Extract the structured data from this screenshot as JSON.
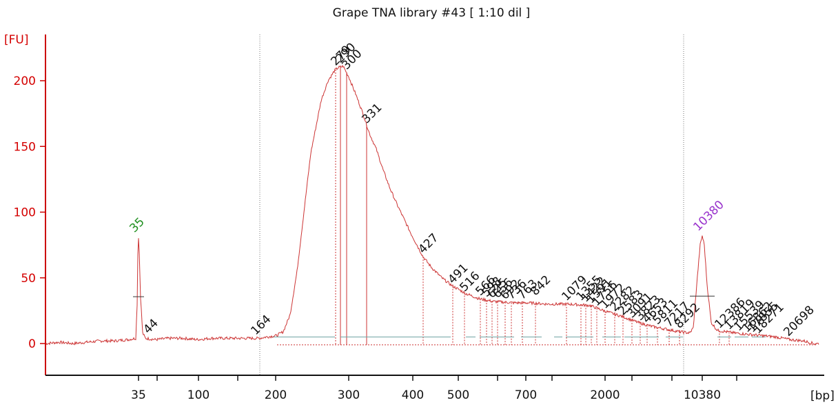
{
  "chart_data": {
    "type": "line",
    "title": "Grape TNA library #43  [ 1:10 dil ]",
    "ylabel": "[FU]",
    "xlabel": "[bp]",
    "ylim": [
      -22,
      230
    ],
    "y_ticks": [
      0,
      50,
      100,
      150,
      200
    ],
    "x_ticks": [
      "35",
      "",
      "100",
      "",
      "200",
      "300",
      "400",
      "500",
      "",
      "700",
      "",
      "2000",
      "",
      "",
      "10380",
      ""
    ],
    "series": [
      {
        "points": [
          [
            0,
            0
          ],
          [
            20,
            1
          ],
          [
            40,
            0
          ],
          [
            60,
            1
          ],
          [
            80,
            2
          ],
          [
            100,
            2
          ],
          [
            120,
            3
          ],
          [
            131,
            4
          ],
          [
            133,
            30
          ],
          [
            134,
            68
          ],
          [
            135,
            81
          ],
          [
            136,
            70
          ],
          [
            138,
            35
          ],
          [
            141,
            8
          ],
          [
            145,
            4
          ],
          [
            160,
            3
          ],
          [
            180,
            4
          ],
          [
            200,
            4
          ],
          [
            220,
            3
          ],
          [
            240,
            4
          ],
          [
            260,
            4
          ],
          [
            280,
            4
          ],
          [
            300,
            4
          ],
          [
            310,
            4
          ],
          [
            320,
            5
          ],
          [
            335,
            6
          ],
          [
            345,
            9
          ],
          [
            355,
            22
          ],
          [
            365,
            55
          ],
          [
            375,
            100
          ],
          [
            385,
            145
          ],
          [
            400,
            185
          ],
          [
            410,
            200
          ],
          [
            420,
            208
          ],
          [
            425,
            210
          ],
          [
            432,
            211
          ],
          [
            440,
            203
          ],
          [
            450,
            190
          ],
          [
            460,
            176
          ],
          [
            470,
            160
          ],
          [
            480,
            148
          ],
          [
            490,
            132
          ],
          [
            500,
            118
          ],
          [
            510,
            106
          ],
          [
            520,
            95
          ],
          [
            530,
            84
          ],
          [
            540,
            74
          ],
          [
            548,
            66
          ],
          [
            560,
            58
          ],
          [
            575,
            50
          ],
          [
            590,
            44
          ],
          [
            610,
            38
          ],
          [
            630,
            34
          ],
          [
            650,
            32
          ],
          [
            680,
            31
          ],
          [
            700,
            31
          ],
          [
            730,
            30
          ],
          [
            760,
            30
          ],
          [
            790,
            29
          ],
          [
            810,
            25
          ],
          [
            840,
            20
          ],
          [
            860,
            16
          ],
          [
            880,
            13
          ],
          [
            900,
            11
          ],
          [
            920,
            9
          ],
          [
            935,
            8
          ],
          [
            940,
            12
          ],
          [
            945,
            45
          ],
          [
            950,
            75
          ],
          [
            953,
            82
          ],
          [
            956,
            75
          ],
          [
            960,
            45
          ],
          [
            966,
            16
          ],
          [
            975,
            10
          ],
          [
            1000,
            8
          ],
          [
            1020,
            7
          ],
          [
            1040,
            6
          ],
          [
            1060,
            5
          ],
          [
            1080,
            3
          ],
          [
            1100,
            2
          ],
          [
            1115,
            0
          ],
          [
            1122,
            0
          ]
        ]
      }
    ],
    "ladder_markers": [
      {
        "label": "35",
        "x": 135,
        "y": 81,
        "color": "#1f8f1f"
      },
      {
        "label": "10380",
        "x": 953,
        "y": 82,
        "color": "#9933cc"
      }
    ],
    "peak_labels": [
      {
        "label": "44",
        "x": 149,
        "y": 5
      },
      {
        "label": "164",
        "x": 305,
        "y": 4
      },
      {
        "label": "279",
        "x": 421,
        "y": 209
      },
      {
        "label": "290",
        "x": 428,
        "y": 211
      },
      {
        "label": "300",
        "x": 437,
        "y": 206
      },
      {
        "label": "331",
        "x": 466,
        "y": 165
      },
      {
        "label": "427",
        "x": 548,
        "y": 66
      },
      {
        "label": "491",
        "x": 591,
        "y": 43
      },
      {
        "label": "516",
        "x": 608,
        "y": 37
      },
      {
        "label": "566",
        "x": 631,
        "y": 34
      },
      {
        "label": "598",
        "x": 640,
        "y": 33
      },
      {
        "label": "625",
        "x": 648,
        "y": 32
      },
      {
        "label": "656",
        "x": 656,
        "y": 32
      },
      {
        "label": "692",
        "x": 667,
        "y": 31
      },
      {
        "label": "736",
        "x": 676,
        "y": 31
      },
      {
        "label": "763",
        "x": 692,
        "y": 31
      },
      {
        "label": "842",
        "x": 711,
        "y": 34
      },
      {
        "label": "1079",
        "x": 756,
        "y": 30
      },
      {
        "label": "1355",
        "x": 777,
        "y": 30
      },
      {
        "label": "1422",
        "x": 784,
        "y": 29
      },
      {
        "label": "1591",
        "x": 792,
        "y": 28
      },
      {
        "label": "1756",
        "x": 800,
        "y": 26
      },
      {
        "label": "1972",
        "x": 812,
        "y": 24
      },
      {
        "label": "2282",
        "x": 826,
        "y": 22
      },
      {
        "label": "2583",
        "x": 838,
        "y": 19
      },
      {
        "label": "3091",
        "x": 851,
        "y": 17
      },
      {
        "label": "3823",
        "x": 863,
        "y": 15
      },
      {
        "label": "4653",
        "x": 873,
        "y": 13
      },
      {
        "label": "5811",
        "x": 888,
        "y": 12
      },
      {
        "label": "7217",
        "x": 905,
        "y": 10
      },
      {
        "label": "8292",
        "x": 920,
        "y": 9
      },
      {
        "label": "12386",
        "x": 978,
        "y": 9
      },
      {
        "label": "13819",
        "x": 992,
        "y": 8
      },
      {
        "label": "15539",
        "x": 1006,
        "y": 7
      },
      {
        "label": "16862",
        "x": 1018,
        "y": 6
      },
      {
        "label": "17855",
        "x": 1026,
        "y": 6
      },
      {
        "label": "18271",
        "x": 1034,
        "y": 5
      },
      {
        "label": "20698",
        "x": 1078,
        "y": 3
      }
    ],
    "integration_segments": [
      [
        328,
        420
      ],
      [
        428,
        588
      ],
      [
        610,
        624
      ],
      [
        630,
        680
      ],
      [
        690,
        720
      ],
      [
        738,
        750
      ],
      [
        755,
        795
      ],
      [
        808,
        835
      ],
      [
        840,
        890
      ],
      [
        900,
        925
      ],
      [
        975,
        995
      ],
      [
        1000,
        1020
      ],
      [
        1025,
        1045
      ]
    ],
    "boundary_lines_bp": [
      "164",
      "8292"
    ]
  }
}
